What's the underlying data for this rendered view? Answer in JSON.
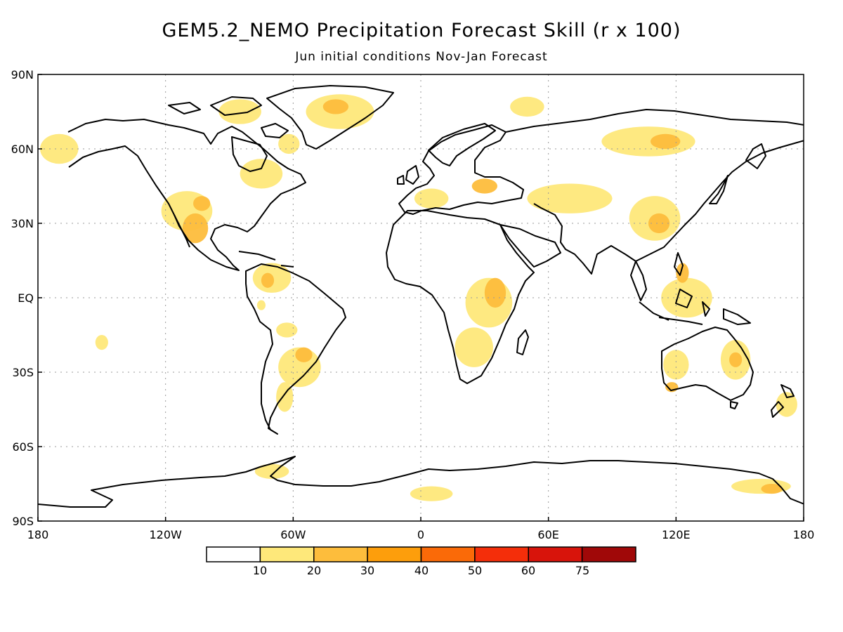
{
  "title": "GEM5.2_NEMO Precipitation Forecast Skill (r x 100)",
  "subtitle": "Jun initial conditions   Nov-Jan Forecast",
  "map": {
    "lat_labels": [
      "90N",
      "60N",
      "30N",
      "EQ",
      "30S",
      "60S",
      "90S"
    ],
    "lat_values": [
      90,
      60,
      30,
      0,
      -30,
      -60,
      -90
    ],
    "lon_labels": [
      "180",
      "120W",
      "60W",
      "0",
      "60E",
      "120E",
      "180"
    ],
    "lon_values": [
      -180,
      -120,
      -60,
      0,
      60,
      120,
      180
    ]
  },
  "colorbar": {
    "labels": [
      "10",
      "20",
      "30",
      "40",
      "50",
      "60",
      "75"
    ],
    "colors": [
      "#ffffff",
      "#fee87a",
      "#fdbd3c",
      "#fd9e0c",
      "#fa6a08",
      "#f42e0a",
      "#d8140b",
      "#a00808"
    ]
  },
  "skill_regions": [
    {
      "name": "greenland",
      "level": 1,
      "lon": -38,
      "lat": 75,
      "rx": 16,
      "ry": 7
    },
    {
      "name": "greenland-core",
      "level": 2,
      "lon": -40,
      "lat": 77,
      "rx": 6,
      "ry": 3
    },
    {
      "name": "canadian-arctic",
      "level": 1,
      "lon": -85,
      "lat": 75,
      "rx": 10,
      "ry": 5
    },
    {
      "name": "alaska-west",
      "level": 1,
      "lon": -170,
      "lat": 60,
      "rx": 9,
      "ry": 6
    },
    {
      "name": "western-us",
      "level": 1,
      "lon": -110,
      "lat": 35,
      "rx": 12,
      "ry": 8
    },
    {
      "name": "mexico",
      "level": 2,
      "lon": -106,
      "lat": 28,
      "rx": 6,
      "ry": 6
    },
    {
      "name": "mexico-north",
      "level": 2,
      "lon": -103,
      "lat": 38,
      "rx": 4,
      "ry": 3
    },
    {
      "name": "northeast-us",
      "level": 1,
      "lon": -75,
      "lat": 50,
      "rx": 10,
      "ry": 6
    },
    {
      "name": "hudson",
      "level": 1,
      "lon": -62,
      "lat": 62,
      "rx": 5,
      "ry": 4
    },
    {
      "name": "caribbean-venezuela",
      "level": 1,
      "lon": -70,
      "lat": 8,
      "rx": 9,
      "ry": 6
    },
    {
      "name": "colombia",
      "level": 2,
      "lon": -72,
      "lat": 7,
      "rx": 3,
      "ry": 3
    },
    {
      "name": "peru",
      "level": 1,
      "lon": -75,
      "lat": -3,
      "rx": 2,
      "ry": 2
    },
    {
      "name": "amazon-south",
      "level": 1,
      "lon": -63,
      "lat": -13,
      "rx": 5,
      "ry": 3
    },
    {
      "name": "southern-brazil",
      "level": 1,
      "lon": -57,
      "lat": -28,
      "rx": 10,
      "ry": 8
    },
    {
      "name": "southern-brazil-core",
      "level": 2,
      "lon": -55,
      "lat": -23,
      "rx": 4,
      "ry": 3
    },
    {
      "name": "argentina",
      "level": 1,
      "lon": -64,
      "lat": -40,
      "rx": 4,
      "ry": 6
    },
    {
      "name": "central-pacific",
      "level": 1,
      "lon": -150,
      "lat": -18,
      "rx": 3,
      "ry": 3
    },
    {
      "name": "east-africa",
      "level": 1,
      "lon": 32,
      "lat": -2,
      "rx": 11,
      "ry": 10
    },
    {
      "name": "east-africa-core",
      "level": 2,
      "lon": 35,
      "lat": 2,
      "rx": 5,
      "ry": 6
    },
    {
      "name": "southern-africa",
      "level": 1,
      "lon": 25,
      "lat": -20,
      "rx": 9,
      "ry": 8
    },
    {
      "name": "mediterranean",
      "level": 1,
      "lon": 5,
      "lat": 40,
      "rx": 8,
      "ry": 4
    },
    {
      "name": "black-sea",
      "level": 2,
      "lon": 30,
      "lat": 45,
      "rx": 6,
      "ry": 3
    },
    {
      "name": "central-asia",
      "level": 1,
      "lon": 70,
      "lat": 40,
      "rx": 20,
      "ry": 6
    },
    {
      "name": "siberia",
      "level": 1,
      "lon": 107,
      "lat": 63,
      "rx": 22,
      "ry": 6
    },
    {
      "name": "siberia-core",
      "level": 2,
      "lon": 115,
      "lat": 63,
      "rx": 7,
      "ry": 3
    },
    {
      "name": "north-russia",
      "level": 1,
      "lon": 50,
      "lat": 77,
      "rx": 8,
      "ry": 4
    },
    {
      "name": "china",
      "level": 1,
      "lon": 110,
      "lat": 32,
      "rx": 12,
      "ry": 9
    },
    {
      "name": "china-core",
      "level": 2,
      "lon": 112,
      "lat": 30,
      "rx": 5,
      "ry": 4
    },
    {
      "name": "maritime-continent",
      "level": 1,
      "lon": 125,
      "lat": 0,
      "rx": 12,
      "ry": 8
    },
    {
      "name": "philippines",
      "level": 2,
      "lon": 123,
      "lat": 10,
      "rx": 3,
      "ry": 4
    },
    {
      "name": "west-australia",
      "level": 1,
      "lon": 120,
      "lat": -27,
      "rx": 6,
      "ry": 6
    },
    {
      "name": "west-australia-core",
      "level": 2,
      "lon": 118,
      "lat": -36,
      "rx": 3,
      "ry": 2
    },
    {
      "name": "east-australia",
      "level": 1,
      "lon": 148,
      "lat": -25,
      "rx": 7,
      "ry": 8
    },
    {
      "name": "east-australia-core",
      "level": 2,
      "lon": 148,
      "lat": -25,
      "rx": 3,
      "ry": 3
    },
    {
      "name": "new-zealand",
      "level": 1,
      "lon": 172,
      "lat": -43,
      "rx": 5,
      "ry": 5
    },
    {
      "name": "antarctic-peninsula",
      "level": 1,
      "lon": -70,
      "lat": -70,
      "rx": 8,
      "ry": 3
    },
    {
      "name": "east-antarctica",
      "level": 1,
      "lon": 5,
      "lat": -79,
      "rx": 10,
      "ry": 3
    },
    {
      "name": "ross-sea",
      "level": 1,
      "lon": 160,
      "lat": -76,
      "rx": 14,
      "ry": 3
    },
    {
      "name": "ross-sea-core",
      "level": 2,
      "lon": 165,
      "lat": -77,
      "rx": 5,
      "ry": 2
    }
  ]
}
